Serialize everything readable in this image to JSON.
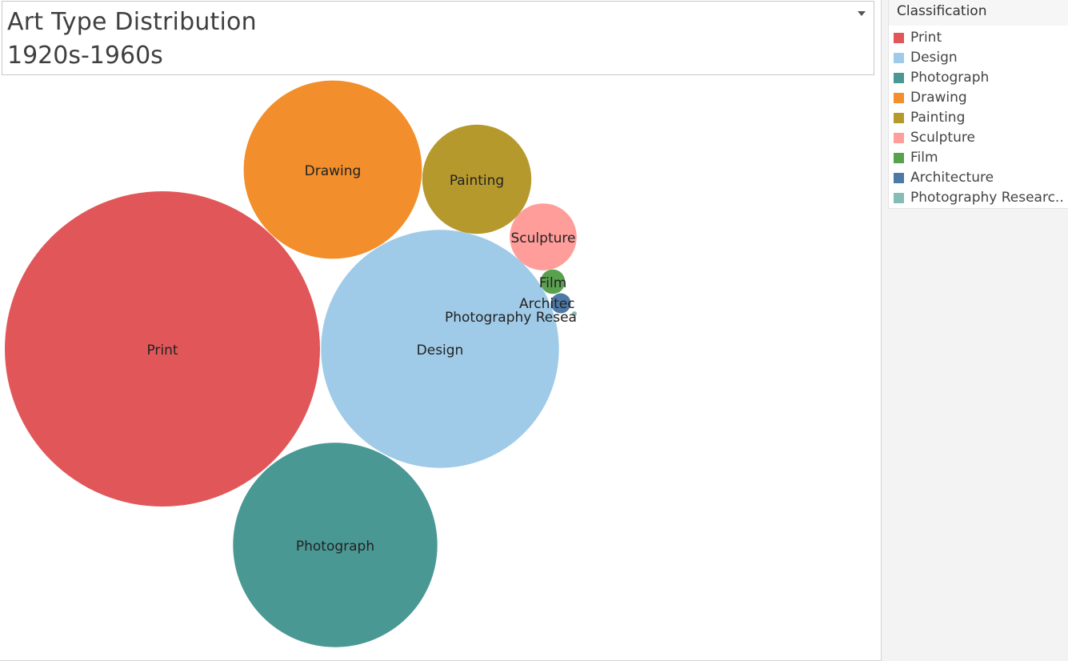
{
  "title": {
    "line1": "Art Type Distribution",
    "line2": "1920s-1960s"
  },
  "legend": {
    "title": "Classification",
    "items": [
      {
        "label": "Print",
        "color": "#e15759"
      },
      {
        "label": "Design",
        "color": "#a0cbe8"
      },
      {
        "label": "Photograph",
        "color": "#499894"
      },
      {
        "label": "Drawing",
        "color": "#f28e2b"
      },
      {
        "label": "Painting",
        "color": "#b6992d"
      },
      {
        "label": "Sculpture",
        "color": "#ff9d9a"
      },
      {
        "label": "Film",
        "color": "#59a14f"
      },
      {
        "label": "Architecture",
        "color": "#4e79a7"
      },
      {
        "label": "Photography Researc..",
        "color": "#86bcb6"
      }
    ]
  },
  "chart_data": {
    "type": "bubble",
    "title": "Art Type Distribution 1920s-1960s",
    "legend_title": "Classification",
    "legend_position": "right",
    "series": [
      {
        "name": "Print",
        "value": 100,
        "color": "#e15759",
        "label": "Print"
      },
      {
        "name": "Design",
        "value": 57,
        "color": "#a0cbe8",
        "label": "Design"
      },
      {
        "name": "Photograph",
        "value": 42,
        "color": "#499894",
        "label": "Photograph"
      },
      {
        "name": "Drawing",
        "value": 32,
        "color": "#f28e2b",
        "label": "Drawing"
      },
      {
        "name": "Painting",
        "value": 12,
        "color": "#b6992d",
        "label": "Painting"
      },
      {
        "name": "Sculpture",
        "value": 4.5,
        "color": "#ff9d9a",
        "label": "Sculpture"
      },
      {
        "name": "Film",
        "value": 0.6,
        "color": "#59a14f",
        "label": "Film"
      },
      {
        "name": "Architecture",
        "value": 0.4,
        "color": "#4e79a7",
        "label": "Architec"
      },
      {
        "name": "Photography Researc..",
        "value": 0.05,
        "color": "#86bcb6",
        "label": "Photography Resea"
      }
    ]
  }
}
